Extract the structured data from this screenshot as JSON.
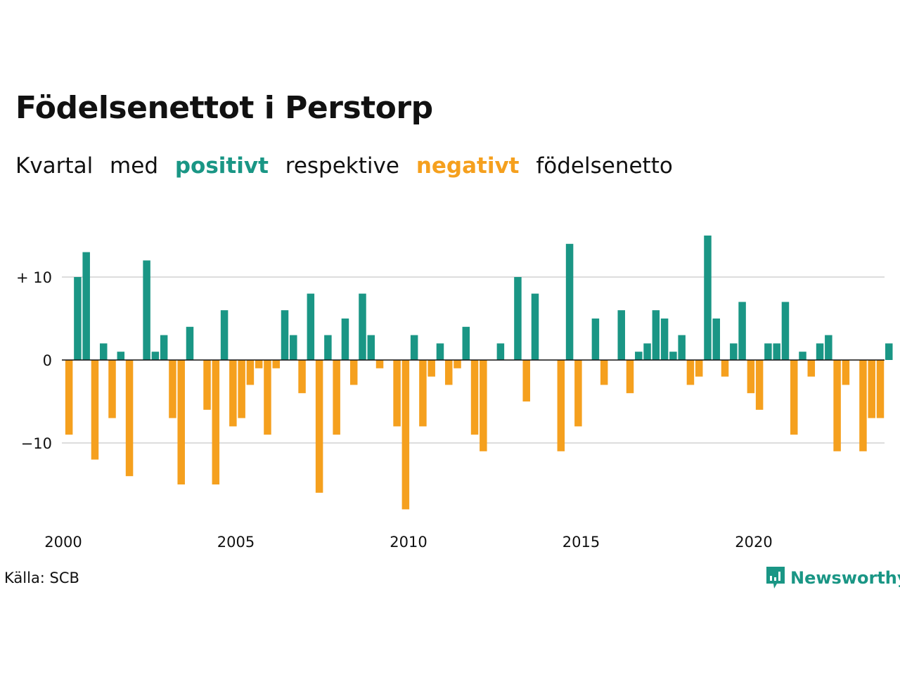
{
  "title": "Födelsenettot i Perstorp",
  "subtitle": {
    "w1": "Kvartal",
    "w2": "med",
    "positive_word": "positivt",
    "w3": "respektive",
    "negative_word": "negativt",
    "w4": "födelsenetto"
  },
  "colors": {
    "positive": "#1a9685",
    "negative": "#f5a01e",
    "grid": "#dddddd",
    "zero": "#111111"
  },
  "source": "Källa: SCB",
  "brand": {
    "name": "Newsworthy",
    "icon": "bar-chart-speech-bubble-icon"
  },
  "chart_data": {
    "type": "bar",
    "x_unit": "quarter",
    "start_year": 2000,
    "values": [
      -9,
      10,
      13,
      -12,
      2,
      -7,
      1,
      -14,
      0,
      12,
      1,
      3,
      -7,
      -15,
      4,
      0,
      -6,
      -15,
      6,
      -8,
      -7,
      -3,
      -1,
      -9,
      -1,
      6,
      3,
      -4,
      8,
      -16,
      3,
      -9,
      5,
      -3,
      8,
      3,
      -1,
      0,
      -8,
      -18,
      3,
      -8,
      -2,
      2,
      -3,
      -1,
      4,
      -9,
      -11,
      0,
      2,
      0,
      10,
      -5,
      8,
      0,
      0,
      -11,
      14,
      -8,
      0,
      5,
      -3,
      0,
      6,
      -4,
      1,
      2,
      6,
      5,
      1,
      3,
      -3,
      -2,
      15,
      5,
      -2,
      2,
      7,
      -4,
      -6,
      2,
      2,
      7,
      -9,
      1,
      -2,
      2,
      3,
      -11,
      -3,
      0,
      -11,
      -7,
      -7,
      2
    ],
    "xticks": [
      "2000",
      "2005",
      "2010",
      "2015",
      "2020"
    ],
    "ytick_labels": [
      "+ 10",
      "0",
      "−10"
    ],
    "yticks": [
      10,
      0,
      -10
    ],
    "ylim": [
      -19,
      16
    ]
  }
}
